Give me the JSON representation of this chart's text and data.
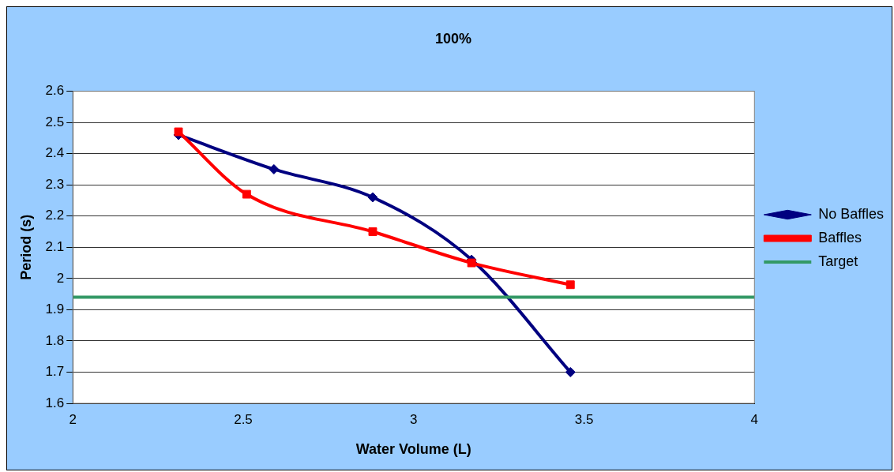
{
  "chart_data": {
    "type": "line",
    "title": "100%",
    "xlabel": "Water Volume (L)",
    "ylabel": "Period (s)",
    "xlim": [
      2,
      4
    ],
    "xticks": [
      2,
      2.5,
      3,
      3.5,
      4
    ],
    "ylim": [
      1.6,
      2.6
    ],
    "yticks": [
      1.6,
      1.7,
      1.8,
      1.9,
      2,
      2.1,
      2.2,
      2.3,
      2.4,
      2.5,
      2.6
    ],
    "grid": "y",
    "legend": "right",
    "series": [
      {
        "name": "No Baffles",
        "color": "#000080",
        "marker": "diamond",
        "x": [
          2.31,
          2.59,
          2.88,
          3.17,
          3.46
        ],
        "values": [
          2.46,
          2.35,
          2.26,
          2.06,
          1.7
        ]
      },
      {
        "name": "Baffles",
        "color": "#ff0000",
        "marker": "square",
        "x": [
          2.31,
          2.51,
          2.88,
          3.17,
          3.46
        ],
        "values": [
          2.47,
          2.27,
          2.15,
          2.05,
          1.98
        ]
      },
      {
        "name": "Target",
        "color": "#339966",
        "marker": "none",
        "x": [
          2,
          4
        ],
        "values": [
          1.94,
          1.94
        ]
      }
    ]
  }
}
